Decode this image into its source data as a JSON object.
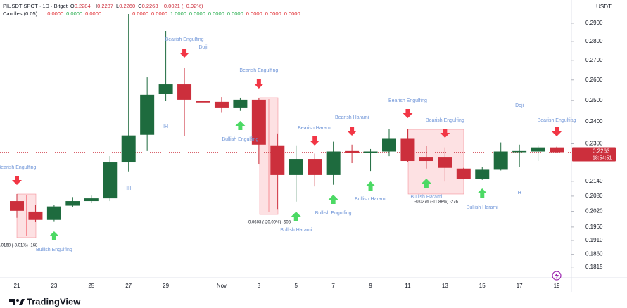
{
  "chart_data": {
    "type": "candlestick",
    "title": "PIUSDT SPOT · 1D · Bitget",
    "legend_values": [
      {
        "label": "O",
        "value": "0.2284"
      },
      {
        "label": "H",
        "value": "0.2287"
      },
      {
        "label": "L",
        "value": "0.2260"
      },
      {
        "label": "C",
        "value": "0.2263"
      }
    ],
    "change": "−0.0021 (−0.92%)",
    "indicator": "Candles (0.05)",
    "indicator_values": [
      {
        "text": "0.0000",
        "color": "#e0282e"
      },
      {
        "text": "0.0000",
        "color": "#22ab4a"
      },
      {
        "text": "0.0000",
        "color": "#e0282e"
      },
      {
        "text": "0.0000",
        "color": "#e0282e"
      },
      {
        "text": "0.0000",
        "color": "#e0282e"
      },
      {
        "text": "1.0000",
        "color": "#22ab4a"
      },
      {
        "text": "0.0000",
        "color": "#22ab4a"
      },
      {
        "text": "0.0000",
        "color": "#22ab4a"
      },
      {
        "text": "0.0000",
        "color": "#22ab4a"
      },
      {
        "text": "0.0000",
        "color": "#e0282e"
      },
      {
        "text": "0.0000",
        "color": "#e0282e"
      },
      {
        "text": "0.0000",
        "color": "#e0282e"
      }
    ],
    "currency": "USDT",
    "categories": [
      "21",
      null,
      "23",
      null,
      "25",
      null,
      "27",
      null,
      "29",
      null,
      null,
      "Nov",
      null,
      "3",
      null,
      "5",
      null,
      "7",
      null,
      "9",
      null,
      "11",
      null,
      "13",
      null,
      "15",
      null,
      "17",
      null,
      "19"
    ],
    "open": [
      0.206,
      0.2019,
      0.1987,
      0.2042,
      0.206,
      0.2071,
      0.2219,
      0.234,
      0.253,
      0.2578,
      0.2499,
      0.2493,
      0.2466,
      0.2503,
      0.2293,
      0.2166,
      0.2234,
      0.2166,
      0.2268,
      0.226,
      0.2266,
      0.2325,
      0.2243,
      0.2243,
      0.2193,
      0.2151,
      0.2188,
      0.2263,
      0.2266,
      0.2284
    ],
    "high": [
      0.2088,
      0.2044,
      0.2044,
      0.2076,
      0.2082,
      0.2246,
      0.2951,
      0.2613,
      0.2857,
      0.2663,
      0.2565,
      0.2516,
      0.2513,
      0.2513,
      0.2346,
      0.2293,
      0.2257,
      0.2309,
      0.2296,
      0.2277,
      0.2366,
      0.2366,
      0.229,
      0.2284,
      0.2196,
      0.2199,
      0.2306,
      0.2296,
      0.2293,
      0.2287
    ],
    "low": [
      0.1995,
      0.1979,
      0.1982,
      0.2036,
      0.2054,
      0.206,
      0.2181,
      0.2268,
      0.2499,
      0.2334,
      0.2391,
      0.2444,
      0.245,
      0.2213,
      0.2029,
      0.2058,
      0.2119,
      0.2126,
      0.2216,
      0.2183,
      0.2246,
      0.2222,
      0.2193,
      0.2139,
      0.2148,
      0.2146,
      0.2185,
      0.2199,
      0.2225,
      0.226
    ],
    "close": [
      0.2022,
      0.1987,
      0.2039,
      0.206,
      0.2071,
      0.2219,
      0.2337,
      0.2527,
      0.2578,
      0.2503,
      0.249,
      0.2466,
      0.2503,
      0.2296,
      0.2166,
      0.2234,
      0.2166,
      0.2266,
      0.226,
      0.2266,
      0.2325,
      0.2225,
      0.2225,
      0.2196,
      0.2151,
      0.2188,
      0.2266,
      0.2268,
      0.2284,
      0.2263
    ],
    "up_color": "#1e6b3e",
    "down_color": "#cc2f3c",
    "log_scale": true,
    "ylim": [
      0.1778,
      0.3032
    ],
    "yticks": [
      {
        "value": 0.29,
        "label": "0.2900"
      },
      {
        "value": 0.28,
        "label": "0.2800"
      },
      {
        "value": 0.27,
        "label": "0.2700"
      },
      {
        "value": 0.26,
        "label": "0.2600"
      },
      {
        "value": 0.25,
        "label": "0.2500"
      },
      {
        "value": 0.24,
        "label": "0.2400"
      },
      {
        "value": 0.23,
        "label": "0.2300"
      },
      {
        "value": 0.214,
        "label": "0.2140"
      },
      {
        "value": 0.208,
        "label": "0.2080"
      },
      {
        "value": 0.202,
        "label": "0.2020"
      },
      {
        "value": 0.196,
        "label": "0.1960"
      },
      {
        "value": 0.191,
        "label": "0.1910"
      },
      {
        "value": 0.186,
        "label": "0.1860"
      },
      {
        "value": 0.1815,
        "label": "0.1815"
      }
    ],
    "last_price": 0.2263,
    "countdown": "18:54:51",
    "annotations": [
      "Bearish Engulfing",
      "Bullish Engulfing",
      "IH",
      "IH",
      "Bearish Engulfing",
      "Doji",
      "Bullish Engulfing",
      "Bearish Engulfing",
      "Bullish Harami",
      "Bearish Harami",
      "Bullish Engulfing",
      "Bearish Harami",
      "Bullish Harami",
      "Bearish Engulfing",
      "Bullish Harami",
      "Bearish Engulfing",
      "Bullish Harami",
      "Doji",
      "H",
      "Bearish Engulfing"
    ],
    "measurements": [
      ".0168 (-8.01%) -168",
      "-0.0603 (-20.00%) -603",
      "-0.0276 (-11.88%) -276"
    ],
    "branding": "TradingView"
  }
}
